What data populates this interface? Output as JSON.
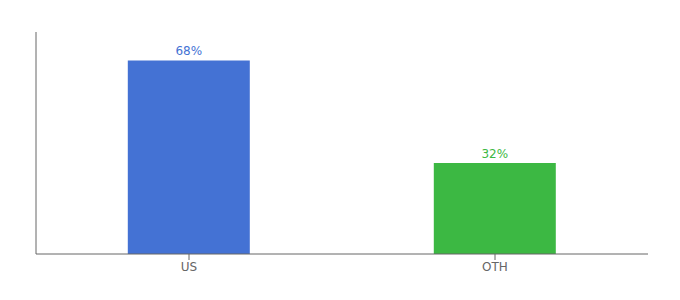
{
  "chart_data": {
    "type": "bar",
    "categories": [
      "US",
      "OTH"
    ],
    "values": [
      68,
      32
    ],
    "value_labels": [
      "68%",
      "32%"
    ],
    "colors": [
      "#4472d4",
      "#3cb843"
    ],
    "ylim": [
      0,
      78
    ],
    "data_labels": true,
    "tick_labels": "x",
    "grid": false
  }
}
